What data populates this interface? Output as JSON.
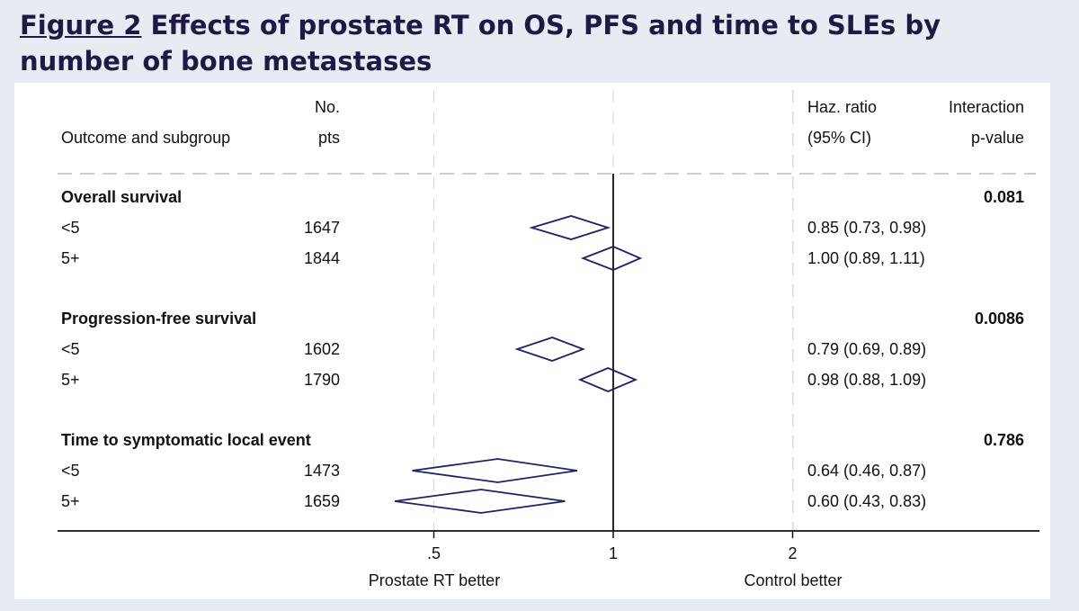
{
  "figure": {
    "label": "Figure 2",
    "title": "Effects of prostate RT on OS, PFS and time to SLEs by number of bone metastases"
  },
  "colors": {
    "diamond_stroke": "#1c2170",
    "title_text": "#1f1a45",
    "background": "#e6ecf2"
  },
  "chart_data": {
    "type": "forest",
    "x_scale": "log",
    "x_reference": 1,
    "x_ticks": [
      {
        "value": 0.5,
        "label": ".5"
      },
      {
        "value": 1,
        "label": "1"
      },
      {
        "value": 2,
        "label": "2"
      }
    ],
    "x_direction_labels": {
      "left": "Prostate RT better",
      "right": "Control better"
    },
    "columns": {
      "subgroup_header": "Outcome and subgroup",
      "n_header_line1": "No.",
      "n_header_line2": "pts",
      "hr_header_line1": "Haz. ratio",
      "hr_header_line2": "(95% CI)",
      "p_header_line1": "Interaction",
      "p_header_line2": "p-value"
    },
    "groups": [
      {
        "name": "Overall survival",
        "p_interaction": "0.081",
        "rows": [
          {
            "subgroup": "<5",
            "n": "1647",
            "hr": 0.85,
            "lo": 0.73,
            "hi": 0.98,
            "hr_text": "0.85 (0.73, 0.98)"
          },
          {
            "subgroup": "5+",
            "n": "1844",
            "hr": 1.0,
            "lo": 0.89,
            "hi": 1.11,
            "hr_text": "1.00 (0.89, 1.11)"
          }
        ]
      },
      {
        "name": "Progression-free survival",
        "p_interaction": "0.0086",
        "rows": [
          {
            "subgroup": "<5",
            "n": "1602",
            "hr": 0.79,
            "lo": 0.69,
            "hi": 0.89,
            "hr_text": "0.79 (0.69, 0.89)"
          },
          {
            "subgroup": "5+",
            "n": "1790",
            "hr": 0.98,
            "lo": 0.88,
            "hi": 1.09,
            "hr_text": "0.98 (0.88, 1.09)"
          }
        ]
      },
      {
        "name": "Time to symptomatic local event",
        "p_interaction": "0.786",
        "rows": [
          {
            "subgroup": "<5",
            "n": "1473",
            "hr": 0.64,
            "lo": 0.46,
            "hi": 0.87,
            "hr_text": "0.64 (0.46, 0.87)"
          },
          {
            "subgroup": "5+",
            "n": "1659",
            "hr": 0.6,
            "lo": 0.43,
            "hi": 0.83,
            "hr_text": "0.60 (0.43, 0.83)"
          }
        ]
      }
    ]
  }
}
